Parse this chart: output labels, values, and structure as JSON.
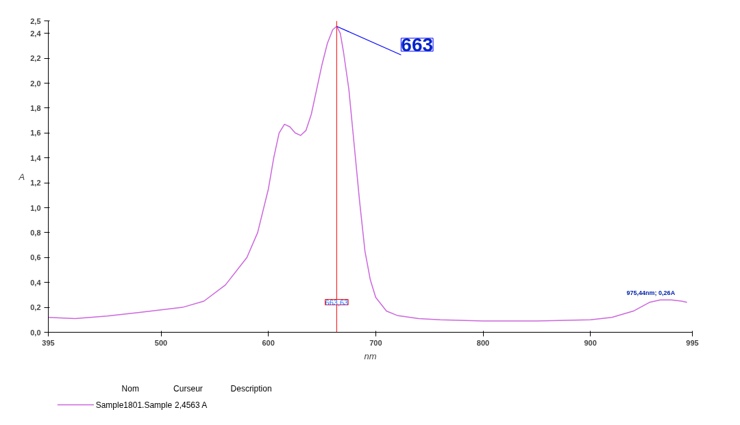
{
  "chart_data": {
    "type": "line",
    "xlabel": "nm",
    "ylabel": "A",
    "xlim": [
      395,
      995
    ],
    "ylim": [
      0,
      2.5
    ],
    "xticks": [
      395,
      500,
      600,
      700,
      800,
      900,
      995
    ],
    "yticks": [
      {
        "value": 0,
        "label": "0,0"
      },
      {
        "value": 0.2,
        "label": "0,2"
      },
      {
        "value": 0.4,
        "label": "0,4"
      },
      {
        "value": 0.6,
        "label": "0,6"
      },
      {
        "value": 0.8,
        "label": "0,8"
      },
      {
        "value": 1.0,
        "label": "1,0"
      },
      {
        "value": 1.2,
        "label": "1,2"
      },
      {
        "value": 1.4,
        "label": "1,4"
      },
      {
        "value": 1.6,
        "label": "1,6"
      },
      {
        "value": 1.8,
        "label": "1,8"
      },
      {
        "value": 2.0,
        "label": "2,0"
      },
      {
        "value": 2.2,
        "label": "2,2"
      },
      {
        "value": 2.4,
        "label": "2,4"
      },
      {
        "value": 2.5,
        "label": "2,5"
      }
    ],
    "grid": false,
    "legend": "bottom left",
    "marker": "none",
    "line_style": "solid",
    "x": [
      395,
      420,
      450,
      480,
      500,
      520,
      540,
      560,
      580,
      590,
      600,
      605,
      610,
      615,
      620,
      625,
      630,
      635,
      640,
      645,
      650,
      655,
      660,
      663.63,
      667,
      670,
      675,
      680,
      685,
      690,
      695,
      700,
      710,
      720,
      740,
      760,
      800,
      850,
      900,
      920,
      940,
      955,
      965,
      975.44,
      985,
      990
    ],
    "series": [
      {
        "name": "Sample1801.Sample",
        "color": "#cc66dd",
        "values": [
          0.12,
          0.11,
          0.13,
          0.16,
          0.18,
          0.2,
          0.25,
          0.38,
          0.6,
          0.8,
          1.15,
          1.4,
          1.6,
          1.67,
          1.65,
          1.6,
          1.58,
          1.62,
          1.75,
          1.95,
          2.15,
          2.32,
          2.43,
          2.4563,
          2.4,
          2.25,
          1.95,
          1.5,
          1.05,
          0.65,
          0.42,
          0.28,
          0.17,
          0.135,
          0.11,
          0.1,
          0.09,
          0.09,
          0.1,
          0.12,
          0.17,
          0.24,
          0.26,
          0.26,
          0.25,
          0.24
        ]
      }
    ],
    "ref_lines": [
      {
        "axis": "x",
        "value": 663.63,
        "label": "663,63",
        "color": "#ff0000"
      }
    ],
    "annotations": [
      {
        "text": "663",
        "x": 663.63,
        "y": 2.4563
      },
      {
        "text": "975,44nm; 0,26A",
        "x": 975.44,
        "y": 0.26
      },
      "Nom",
      "Curseur",
      "Description",
      "2,4563 A"
    ]
  }
}
